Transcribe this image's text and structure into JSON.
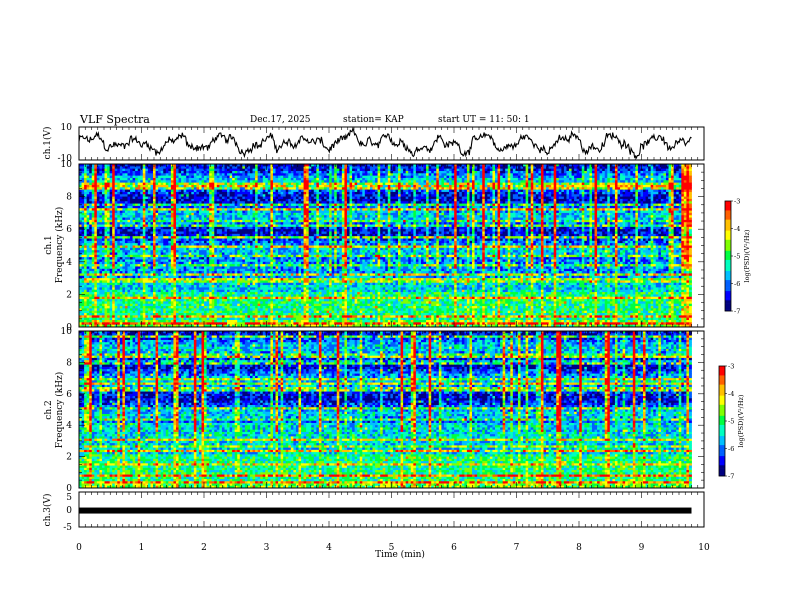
{
  "header": {
    "title": "VLF Spectra",
    "date": "Dec.17, 2025",
    "station": "station= KAP",
    "start_ut": "start  UT =   11: 50: 1"
  },
  "chart_data": [
    {
      "id": "ch1-waveform",
      "type": "line",
      "ylabel": "ch.1(V)",
      "ylim": [
        -10,
        10
      ],
      "ytick_labels": [
        "10",
        "-10"
      ],
      "x_range_min": [
        0,
        9.8
      ],
      "y_mean": 0,
      "y_amplitude": 6
    },
    {
      "id": "ch1-spectrogram",
      "type": "heatmap",
      "ylabel": "ch.1\nFrequency (kHz)",
      "ylim": [
        0,
        10
      ],
      "ytick_labels": [
        "0",
        "2",
        "4",
        "6",
        "8",
        "10"
      ],
      "x_range_min": [
        0,
        9.8
      ],
      "colorbar": {
        "label": "log(PSD)(V²/Hz)",
        "range": [
          -7,
          -3
        ],
        "tick_labels": [
          "-7",
          "-6",
          "-5",
          "-4",
          "-3"
        ]
      }
    },
    {
      "id": "ch2-spectrogram",
      "type": "heatmap",
      "ylabel": "ch.2\nFrequency (kHz)",
      "ylim": [
        0,
        10
      ],
      "ytick_labels": [
        "0",
        "2",
        "4",
        "6",
        "8",
        "10"
      ],
      "x_range_min": [
        0,
        9.8
      ],
      "colorbar": {
        "label": "log(PSD)(V²/Hz)",
        "range": [
          -7,
          -3
        ],
        "tick_labels": [
          "-7",
          "-6",
          "-5",
          "-4",
          "-3"
        ]
      }
    },
    {
      "id": "ch3-trace",
      "type": "line",
      "ylabel": "ch.3(V)",
      "ylim": [
        -5,
        5
      ],
      "ytick_labels": [
        "5",
        "0",
        "-5"
      ],
      "x_range_min": [
        0,
        9.8
      ],
      "y_value": -0.3
    }
  ],
  "x_axis": {
    "label": "Time  (min)",
    "range": [
      0,
      10
    ],
    "tick_labels": [
      "0",
      "1",
      "2",
      "3",
      "4",
      "5",
      "6",
      "7",
      "8",
      "9",
      "10"
    ]
  },
  "colormap": [
    "#000080",
    "#0000ff",
    "#0060ff",
    "#00c0ff",
    "#00ffc0",
    "#00ff40",
    "#80ff00",
    "#ffff00",
    "#ffc000",
    "#ff6000",
    "#ff0000"
  ]
}
